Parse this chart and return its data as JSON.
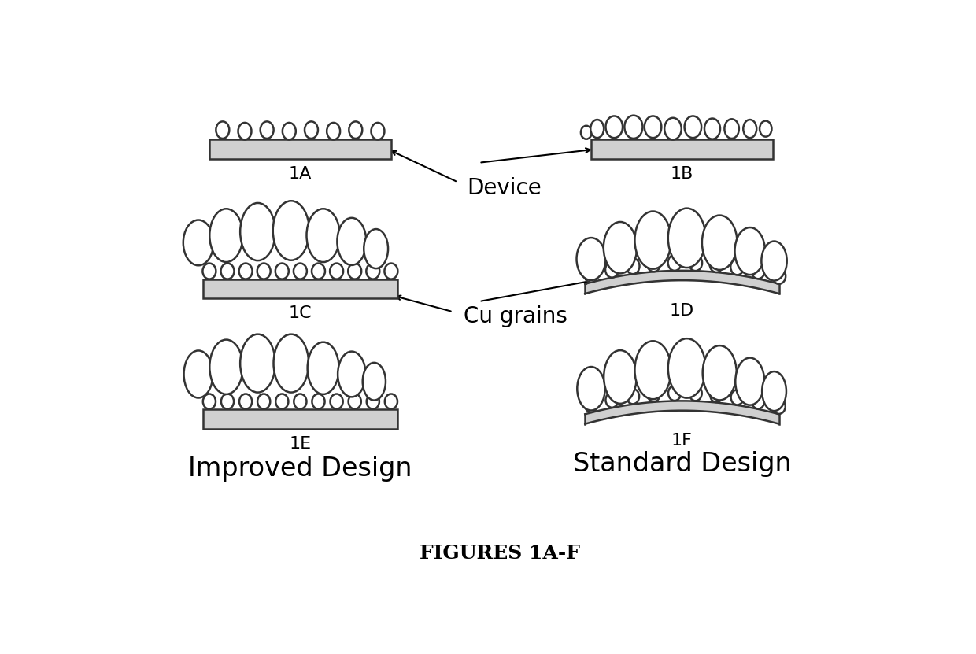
{
  "bg_color": "#ffffff",
  "text_color": "#000000",
  "substrate_color": "#d0d0d0",
  "substrate_edge": "#333333",
  "grain_face": "#ffffff",
  "grain_edge": "#333333",
  "label_fontsize": 16,
  "sublabel_fontsize": 24,
  "caption_fontsize": 20,
  "title_fontsize": 18,
  "title": "FIGURES 1A-F",
  "improved_label": "Improved Design",
  "standard_label": "Standard Design",
  "device_label": "Device",
  "cu_grains_label": "Cu grains",
  "lw": 1.8
}
